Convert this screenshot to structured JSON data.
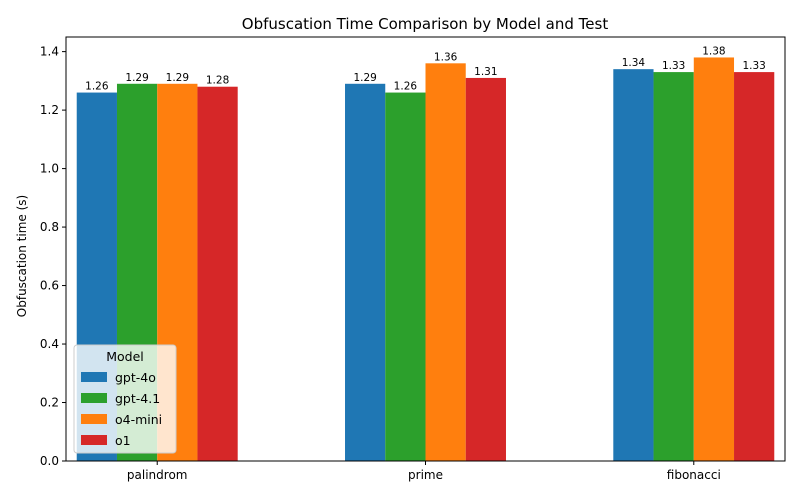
{
  "chart_data": {
    "type": "bar",
    "title": "Obfuscation Time Comparison by Model and Test",
    "xlabel": "",
    "ylabel": "Obfuscation time (s)",
    "categories": [
      "palindrom",
      "prime",
      "fibonacci"
    ],
    "series": [
      {
        "name": "gpt-4o",
        "color": "#1f77b4",
        "values": [
          1.26,
          1.29,
          1.34
        ]
      },
      {
        "name": "gpt-4.1",
        "color": "#2ca02c",
        "values": [
          1.29,
          1.26,
          1.33
        ]
      },
      {
        "name": "o4-mini",
        "color": "#ff7f0e",
        "values": [
          1.29,
          1.36,
          1.38
        ]
      },
      {
        "name": "o1",
        "color": "#d62728",
        "values": [
          1.28,
          1.31,
          1.33
        ]
      }
    ],
    "ylim": [
      0,
      1.45
    ],
    "yticks": [
      "0.0",
      "0.2",
      "0.4",
      "0.6",
      "0.8",
      "1.0",
      "1.2",
      "1.4"
    ],
    "grid": false,
    "legend": {
      "title": "Model",
      "placement": "lower-left"
    }
  }
}
